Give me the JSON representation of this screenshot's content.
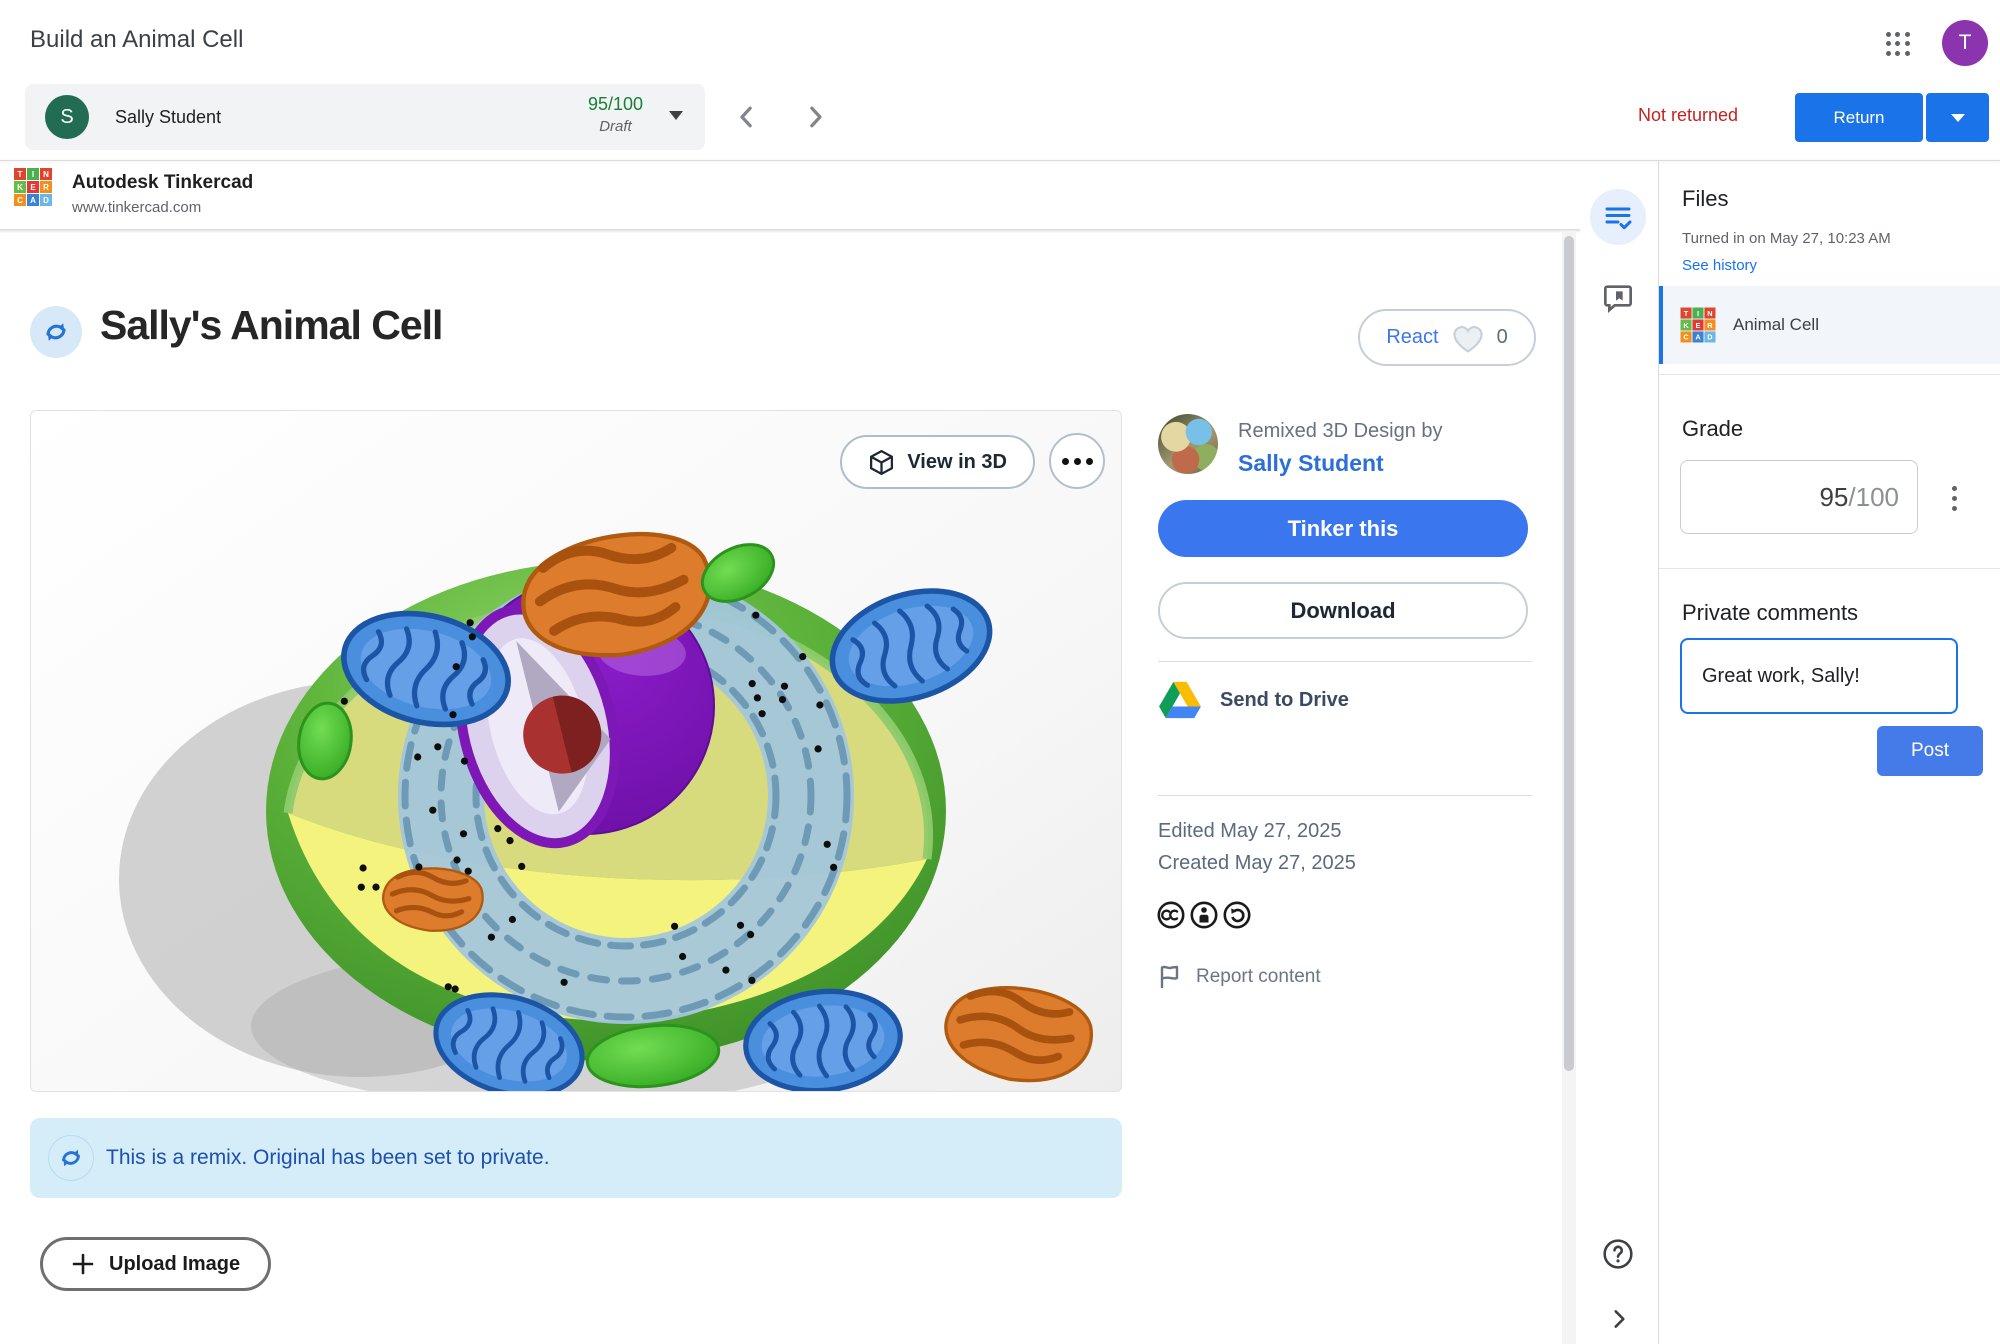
{
  "app": {
    "title": "Build an Animal Cell",
    "account_avatar_letter": "T"
  },
  "student_bar": {
    "avatar_letter": "S",
    "student_name": "Sally Student",
    "grade": "95/100",
    "status": "Draft"
  },
  "return_area": {
    "not_returned": "Not returned",
    "return_label": "Return"
  },
  "embed": {
    "site_name": "Autodesk Tinkercad",
    "site_url": "www.tinkercad.com",
    "logo_letters": [
      "T",
      "I",
      "N",
      "K",
      "E",
      "R",
      "C",
      "A",
      "D"
    ],
    "design": {
      "title": "Sally's Animal Cell",
      "react_label": "React",
      "react_count": "0",
      "view_in_3d_label": "View in 3D",
      "remixed_by_label": "Remixed 3D Design by",
      "author": "Sally Student",
      "tinker_this_label": "Tinker this",
      "download_label": "Download",
      "send_to_drive_label": "Send to Drive",
      "edited_line": "Edited May 27, 2025",
      "created_line": "Created May 27, 2025",
      "report_content_label": "Report content",
      "remix_notice": "This is a remix. Original has been set to private.",
      "upload_image_label": "Upload Image"
    }
  },
  "sidebar": {
    "files": {
      "heading": "Files",
      "turned_in": "Turned in on May 27, 10:23 AM",
      "see_history": "See history",
      "items": [
        {
          "name": "Animal Cell"
        }
      ]
    },
    "grade": {
      "heading": "Grade",
      "score": "95",
      "denominator": "/100"
    },
    "comments": {
      "heading": "Private comments",
      "draft_text": "Great work, Sally!",
      "post_label": "Post"
    }
  },
  "icons": {
    "apps_grid": "3x3-dot-grid",
    "prev": "chevron-left",
    "next": "chevron-right",
    "caret_down": "triangle-down",
    "remix": "two-cycling-arrows",
    "heart": "heart-outline",
    "cube": "3d-cube",
    "more": "ellipsis",
    "drive": "google-drive-triangle",
    "cc": "creative-commons",
    "cc_by": "attribution-person",
    "cc_sa": "share-alike-arrow",
    "flag": "report-flag",
    "grading": "list-with-check",
    "comment_bank": "speech-bubble-bookmark",
    "help": "question-circle",
    "collapse": "chevron-right",
    "plus": "plus",
    "kebab": "vertical-ellipsis"
  },
  "colors": {
    "google_blue": "#1a73e8",
    "status_red": "#c5221f",
    "grade_green": "#188038",
    "tinkercad_blue": "#3a76ee",
    "banner_bg": "#d5edf9",
    "banner_text": "#1c4fae",
    "account_purple": "#8c34ae",
    "student_avatar_green": "#236c54",
    "logo_tiles": [
      "#e0442d",
      "#4caf50",
      "#e0442d",
      "#66bb4a",
      "#e53935",
      "#f2901e",
      "#f2901e",
      "#3b82d0",
      "#6cb6e6"
    ],
    "drive": [
      "#0f9d58",
      "#fbbc04",
      "#4285f4"
    ]
  }
}
